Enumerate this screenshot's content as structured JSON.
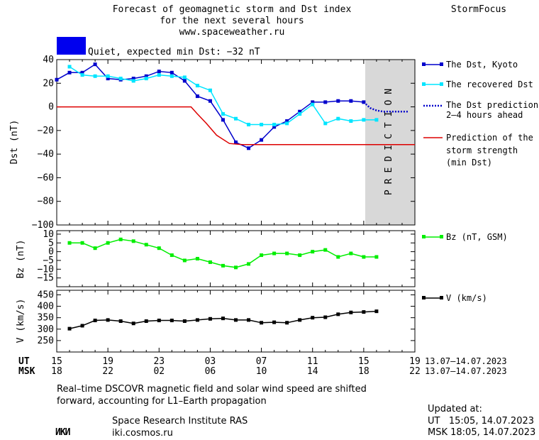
{
  "header": {
    "title_line1": "Forecast of geomagnetic storm and Dst index",
    "title_line2": "for the next several hours",
    "title_line3": "www.spaceweather.ru",
    "brand": "StormFocus",
    "status_label": "Quiet, expected min Dst: −32 nT",
    "status_color": "#0000ee"
  },
  "prediction_label": "PREDICTION",
  "axes": {
    "ut_label": "UT",
    "msk_label": "MSK",
    "ut_ticks": [
      "15",
      "19",
      "23",
      "03",
      "07",
      "11",
      "15",
      "19"
    ],
    "msk_ticks": [
      "18",
      "22",
      "02",
      "06",
      "10",
      "14",
      "18",
      "22"
    ],
    "date_ut": "13.07–14.07.2023",
    "date_msk": "13.07–14.07.2023"
  },
  "legend": {
    "dst_kyoto": "The Dst, Kyoto",
    "dst_recovered": "The recovered Dst",
    "dst_prediction_1": "The Dst prediction",
    "dst_prediction_2": "2–4 hours ahead",
    "storm_1": "Prediction of the",
    "storm_2": "storm strength",
    "storm_3": "(min Dst)",
    "bz": "Bz (nT, GSM)",
    "v": "V (km/s)"
  },
  "footer": {
    "note_line1": "Real–time DSCOVR magnetic field and solar wind speed are shifted",
    "note_line2": "forward, accounting for L1–Earth propagation",
    "logo": "ИКИ",
    "institute": "Space Research Institute RAS",
    "site": "iki.cosmos.ru",
    "updated_label": "Updated at:",
    "updated_ut": "UT   15:05, 14.07.2023",
    "updated_msk": "MSK 18:05, 14.07.2023"
  },
  "colors": {
    "kyoto": "#0000cc",
    "recovered": "#00e5ff",
    "storm": "#dd0000",
    "bz": "#00ee00",
    "v": "#000000",
    "prediction_band": "#d8d8d8"
  },
  "chart_data": [
    {
      "type": "line",
      "title": "Dst",
      "ylabel": "Dst (nT)",
      "x_unit": "hours UT from 15:00 13.07.2023",
      "xlim": [
        0,
        28
      ],
      "ylim": [
        -100,
        40
      ],
      "yticks": [
        40,
        20,
        0,
        -20,
        -40,
        -60,
        -80,
        -100
      ],
      "prediction_band_x": [
        24,
        28
      ],
      "series": [
        {
          "name": "The Dst, Kyoto",
          "x": [
            0,
            1,
            2,
            3,
            4,
            5,
            6,
            7,
            8,
            9,
            10,
            11,
            12,
            13,
            14,
            15,
            16,
            17,
            18,
            19,
            20,
            21,
            22,
            23,
            24
          ],
          "values": [
            23,
            29,
            29,
            36,
            24,
            23,
            24,
            26,
            30,
            29,
            22,
            9,
            5,
            -11,
            -30,
            -35,
            -28,
            -17,
            -12,
            -4,
            4,
            4,
            5,
            5,
            4
          ]
        },
        {
          "name": "The recovered Dst",
          "x": [
            1,
            2,
            3,
            4,
            5,
            6,
            7,
            8,
            9,
            10,
            11,
            12,
            13,
            14,
            15,
            16,
            17,
            18,
            19,
            20,
            21,
            22,
            23,
            24,
            25
          ],
          "values": [
            34,
            27,
            26,
            26,
            24,
            22,
            24,
            27,
            26,
            25,
            18,
            14,
            -6,
            -10,
            -15,
            -15,
            -15,
            -14,
            -6,
            2,
            -14,
            -10,
            -12,
            -11,
            -11
          ]
        },
        {
          "name": "The Dst prediction 2–4 hours ahead",
          "x": [
            24,
            24.5,
            25,
            25.5,
            26,
            26.5,
            27,
            27.5
          ],
          "values": [
            4,
            -1,
            -3,
            -4,
            -4,
            -4,
            -4,
            -4
          ]
        },
        {
          "name": "Prediction of the storm strength (min Dst)",
          "x": [
            0,
            10.5,
            11,
            11.7,
            12.5,
            13.5,
            14.5,
            15.5,
            28
          ],
          "values": [
            0,
            0,
            -6,
            -14,
            -24,
            -31,
            -32,
            -32,
            -32
          ]
        }
      ]
    },
    {
      "type": "line",
      "ylabel": "Bz (nT)",
      "xlim": [
        0,
        28
      ],
      "ylim": [
        -20,
        12
      ],
      "yticks": [
        10,
        5,
        0,
        -5,
        -10,
        -15
      ],
      "series": [
        {
          "name": "Bz (nT, GSM)",
          "x": [
            1,
            2,
            3,
            4,
            5,
            6,
            7,
            8,
            9,
            10,
            11,
            12,
            13,
            14,
            15,
            16,
            17,
            18,
            19,
            20,
            21,
            22,
            23,
            24,
            25
          ],
          "values": [
            5,
            5,
            2,
            5,
            7,
            6,
            4,
            2,
            -2,
            -5,
            -4,
            -6,
            -8,
            -9,
            -7,
            -2,
            -1,
            -1,
            -2,
            0,
            1,
            -3,
            -1,
            -3,
            -3
          ]
        }
      ]
    },
    {
      "type": "line",
      "ylabel": "V (km/s)",
      "xlim": [
        0,
        28
      ],
      "ylim": [
        200,
        470
      ],
      "yticks": [
        450,
        400,
        350,
        300,
        250
      ],
      "series": [
        {
          "name": "V (km/s)",
          "x": [
            1,
            2,
            3,
            4,
            5,
            6,
            7,
            8,
            9,
            10,
            11,
            12,
            13,
            14,
            15,
            16,
            17,
            18,
            19,
            20,
            21,
            22,
            23,
            24,
            25
          ],
          "values": [
            302,
            315,
            338,
            340,
            335,
            325,
            335,
            338,
            338,
            335,
            340,
            345,
            347,
            340,
            340,
            328,
            330,
            328,
            340,
            350,
            352,
            365,
            373,
            375,
            378
          ]
        }
      ]
    }
  ]
}
